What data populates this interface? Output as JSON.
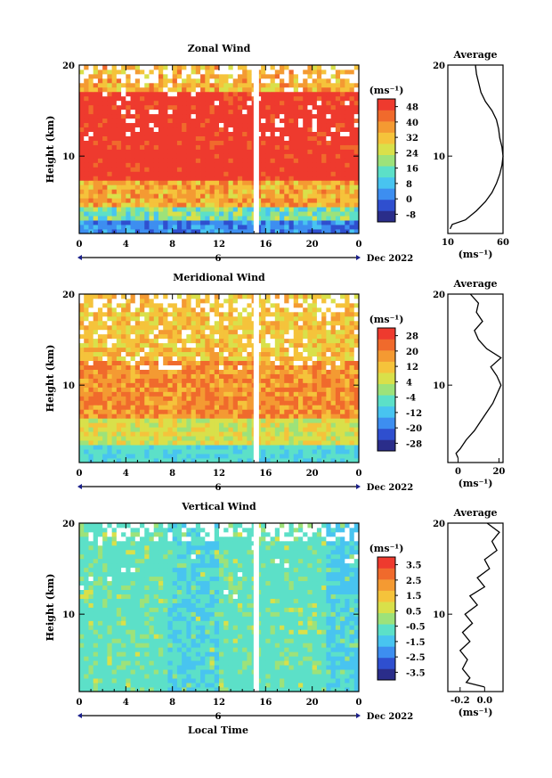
{
  "figure": {
    "x_label": "Local Time",
    "date_label": "Dec 2022",
    "date_day": "6",
    "units": "(ms⁻¹)",
    "x_tick_labels": [
      "0",
      "4",
      "8",
      "12",
      "16",
      "20",
      "0"
    ],
    "y_tick_labels": [
      "20",
      "10"
    ],
    "y_label": "Height (km)",
    "profile_title": "Average"
  },
  "chart_data": [
    {
      "type": "heatmap",
      "title": "Zonal Wind",
      "xlabel": "Local Time",
      "ylabel": "Height (km)",
      "x_ticks": [
        0,
        4,
        8,
        12,
        16,
        20,
        24
      ],
      "xlim": [
        0,
        24
      ],
      "ylim": [
        1.5,
        20
      ],
      "colorbar": {
        "unit": "(ms⁻¹)",
        "tick_labels": [
          "48",
          "40",
          "32",
          "24",
          "16",
          "8",
          "0",
          "-8"
        ],
        "min": -12,
        "max": 52,
        "colors": [
          "#2a2d8a",
          "#2f4fcf",
          "#3d8ef0",
          "#48c4f0",
          "#5ce0c8",
          "#9de27a",
          "#d9e04a",
          "#f5c33b",
          "#f49a32",
          "#f06a2c",
          "#ee3a2e"
        ]
      },
      "missing_gap_local_time": 15.2,
      "profile": {
        "title": "Average",
        "x_tick_labels": [
          "10",
          "60"
        ],
        "xlim": [
          10,
          60
        ],
        "heights": [
          2,
          2.5,
          3,
          4,
          5,
          6,
          7,
          8,
          9,
          10,
          11,
          12,
          13,
          14,
          15,
          16,
          17,
          18,
          19,
          20
        ],
        "values": [
          12,
          14,
          26,
          36,
          44,
          50,
          54,
          57,
          59,
          60,
          59,
          57,
          56,
          54,
          50,
          44,
          40,
          38,
          36,
          35
        ]
      }
    },
    {
      "type": "heatmap",
      "title": "Meridional Wind",
      "xlabel": "Local Time",
      "ylabel": "Height (km)",
      "x_ticks": [
        0,
        4,
        8,
        12,
        16,
        20,
        24
      ],
      "xlim": [
        0,
        24
      ],
      "ylim": [
        1.5,
        20
      ],
      "colorbar": {
        "unit": "(ms⁻¹)",
        "tick_labels": [
          "28",
          "20",
          "12",
          "4",
          "-4",
          "-12",
          "-20",
          "-28"
        ],
        "min": -32,
        "max": 32,
        "colors": [
          "#2a2d8a",
          "#2f4fcf",
          "#3d8ef0",
          "#48c4f0",
          "#5ce0c8",
          "#9de27a",
          "#d9e04a",
          "#f5c33b",
          "#f49a32",
          "#f06a2c",
          "#ee3a2e"
        ]
      },
      "missing_gap_local_time": 15.2,
      "profile": {
        "title": "Average",
        "x_tick_labels": [
          "0",
          "20"
        ],
        "xlim": [
          -5,
          22
        ],
        "heights": [
          2,
          2.5,
          3,
          4,
          5,
          6,
          7,
          8,
          9,
          10,
          11,
          12,
          13,
          14,
          15,
          16,
          17,
          18,
          19,
          20
        ],
        "values": [
          0,
          -1,
          1,
          4,
          8,
          11,
          14,
          17,
          19,
          21,
          19,
          16,
          21,
          14,
          10,
          8,
          12,
          9,
          10,
          6
        ]
      }
    },
    {
      "type": "heatmap",
      "title": "Vertical Wind",
      "xlabel": "Local Time",
      "ylabel": "Height (km)",
      "x_ticks": [
        0,
        4,
        8,
        12,
        16,
        20,
        24
      ],
      "xlim": [
        0,
        24
      ],
      "ylim": [
        1.5,
        20
      ],
      "colorbar": {
        "unit": "(ms⁻¹)",
        "tick_labels": [
          "3.5",
          "2.5",
          "1.5",
          "0.5",
          "-0.5",
          "-1.5",
          "-2.5",
          "-3.5"
        ],
        "min": -4,
        "max": 4,
        "colors": [
          "#2a2d8a",
          "#2f4fcf",
          "#3d8ef0",
          "#48c4f0",
          "#5ce0c8",
          "#9de27a",
          "#d9e04a",
          "#f5c33b",
          "#f49a32",
          "#f06a2c",
          "#ee3a2e"
        ]
      },
      "missing_gap_local_time": 15.2,
      "profile": {
        "title": "Average",
        "x_tick_labels": [
          "-0.2",
          "0.0"
        ],
        "xlim": [
          -0.3,
          0.15
        ],
        "heights": [
          2,
          2.5,
          3,
          4,
          5,
          6,
          7,
          8,
          9,
          10,
          11,
          12,
          13,
          14,
          15,
          16,
          17,
          18,
          19,
          20
        ],
        "values": [
          0.0,
          -0.15,
          -0.12,
          -0.18,
          -0.14,
          -0.2,
          -0.12,
          -0.18,
          -0.1,
          -0.16,
          -0.06,
          -0.12,
          0.0,
          -0.06,
          0.04,
          0.0,
          0.1,
          0.06,
          0.12,
          0.02
        ]
      }
    }
  ]
}
